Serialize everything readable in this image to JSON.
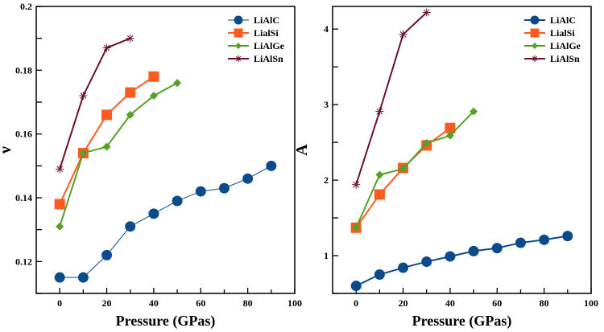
{
  "colors": {
    "LiAlC": "#0b4a8b",
    "LialSi": "#ff5a1f",
    "LiAlGe": "#56a02a",
    "LiAlSn": "#6b0f2b"
  },
  "chart_data": [
    {
      "type": "line",
      "xlabel": "Pressure (GPas)",
      "ylabel": "ν",
      "xlim": [
        -10,
        100
      ],
      "ylim": [
        0.11,
        0.2
      ],
      "xticks": [
        0,
        20,
        40,
        60,
        80,
        100
      ],
      "yticks": [
        0.12,
        0.14,
        0.16,
        0.18,
        0.2
      ],
      "ytick_labels": [
        "0.12",
        "0.14",
        "0.16",
        "0.18",
        "0.2"
      ],
      "grid": false,
      "legend": "top-right",
      "series": [
        {
          "name": "LiAlC",
          "marker": "circle",
          "x": [
            0,
            10,
            20,
            30,
            40,
            50,
            60,
            70,
            80,
            90
          ],
          "y": [
            0.115,
            0.115,
            0.122,
            0.131,
            0.135,
            0.139,
            0.142,
            0.143,
            0.146,
            0.15
          ]
        },
        {
          "name": "LialSi",
          "marker": "square",
          "x": [
            0,
            10,
            20,
            30,
            40
          ],
          "y": [
            0.138,
            0.154,
            0.166,
            0.173,
            0.178
          ]
        },
        {
          "name": "LiAlGe",
          "marker": "diamond",
          "x": [
            0,
            10,
            20,
            30,
            40,
            50
          ],
          "y": [
            0.131,
            0.154,
            0.156,
            0.166,
            0.172,
            0.176
          ]
        },
        {
          "name": "LiAlSn",
          "marker": "asterisk",
          "x": [
            0,
            10,
            20,
            30
          ],
          "y": [
            0.149,
            0.172,
            0.187,
            0.19
          ]
        }
      ]
    },
    {
      "type": "line",
      "xlabel": "Pressure (GPas)",
      "ylabel": "A",
      "xlim": [
        -10,
        100
      ],
      "ylim": [
        0.5,
        4.3
      ],
      "xticks": [
        0,
        20,
        40,
        60,
        80,
        100
      ],
      "yticks": [
        1,
        2,
        3,
        4
      ],
      "ytick_labels": [
        "1",
        "2",
        "3",
        "4"
      ],
      "grid": false,
      "legend": "top-right",
      "series": [
        {
          "name": "LiAlC",
          "marker": "circle",
          "x": [
            0,
            10,
            20,
            30,
            40,
            50,
            60,
            70,
            80,
            90
          ],
          "y": [
            0.6,
            0.75,
            0.84,
            0.92,
            0.99,
            1.06,
            1.1,
            1.17,
            1.21,
            1.26
          ]
        },
        {
          "name": "LialSi",
          "marker": "square",
          "x": [
            0,
            10,
            20,
            30,
            40
          ],
          "y": [
            1.37,
            1.81,
            2.16,
            2.46,
            2.69
          ]
        },
        {
          "name": "LiAlGe",
          "marker": "diamond",
          "x": [
            0,
            10,
            20,
            30,
            40,
            50
          ],
          "y": [
            1.37,
            2.07,
            2.15,
            2.49,
            2.59,
            2.91
          ]
        },
        {
          "name": "LiAlSn",
          "marker": "asterisk",
          "x": [
            0,
            10,
            20,
            30
          ],
          "y": [
            1.94,
            2.91,
            3.93,
            4.22
          ]
        }
      ]
    }
  ]
}
